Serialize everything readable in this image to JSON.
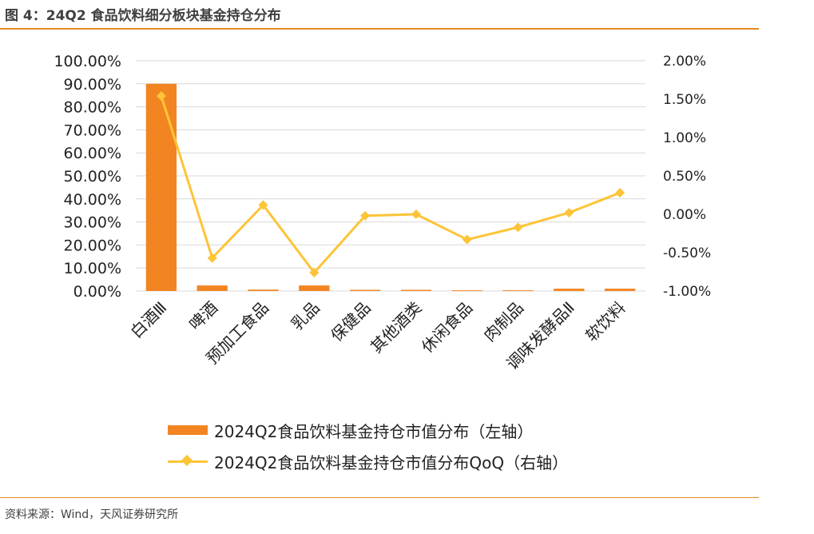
{
  "header": {
    "title": "图 4：24Q2 食品饮料细分板块基金持仓分布"
  },
  "footer": {
    "source": "资料来源：Wind，天风证券研究所"
  },
  "colors": {
    "accent_rule": "#e8891f",
    "bar": "#f28522",
    "line": "#fdc437",
    "grid": "#d9d9d9"
  },
  "chart_data": {
    "type": "bar",
    "title": "",
    "categories": [
      "白酒Ⅲ",
      "啤酒",
      "预加工食品",
      "乳品",
      "保健品",
      "其他酒类",
      "休闲食品",
      "肉制品",
      "调味发酵品Ⅱ",
      "软饮料"
    ],
    "left_axis": {
      "ticks": [
        "100.00%",
        "90.00%",
        "80.00%",
        "70.00%",
        "60.00%",
        "50.00%",
        "40.00%",
        "30.00%",
        "20.00%",
        "10.00%",
        "0.00%"
      ],
      "ylim": [
        0,
        100
      ]
    },
    "right_axis": {
      "ticks": [
        "2.00%",
        "1.50%",
        "1.00%",
        "0.50%",
        "0.00%",
        "-0.50%",
        "-1.00%"
      ],
      "ylim": [
        -1.0,
        2.0
      ]
    },
    "grid": true,
    "legend_position": "bottom",
    "series": [
      {
        "name": "2024Q2食品饮料基金持仓市值分布（左轴）",
        "type": "bar",
        "axis": "left",
        "values": [
          90.0,
          2.4,
          0.6,
          2.4,
          0.5,
          0.5,
          0.3,
          0.3,
          1.0,
          1.0
        ]
      },
      {
        "name": "2024Q2食品饮料基金持仓市值分布QoQ（右轴）",
        "type": "line",
        "axis": "right",
        "values": [
          1.54,
          -0.57,
          0.12,
          -0.76,
          -0.02,
          0.0,
          -0.33,
          -0.17,
          0.02,
          0.28
        ]
      }
    ]
  }
}
